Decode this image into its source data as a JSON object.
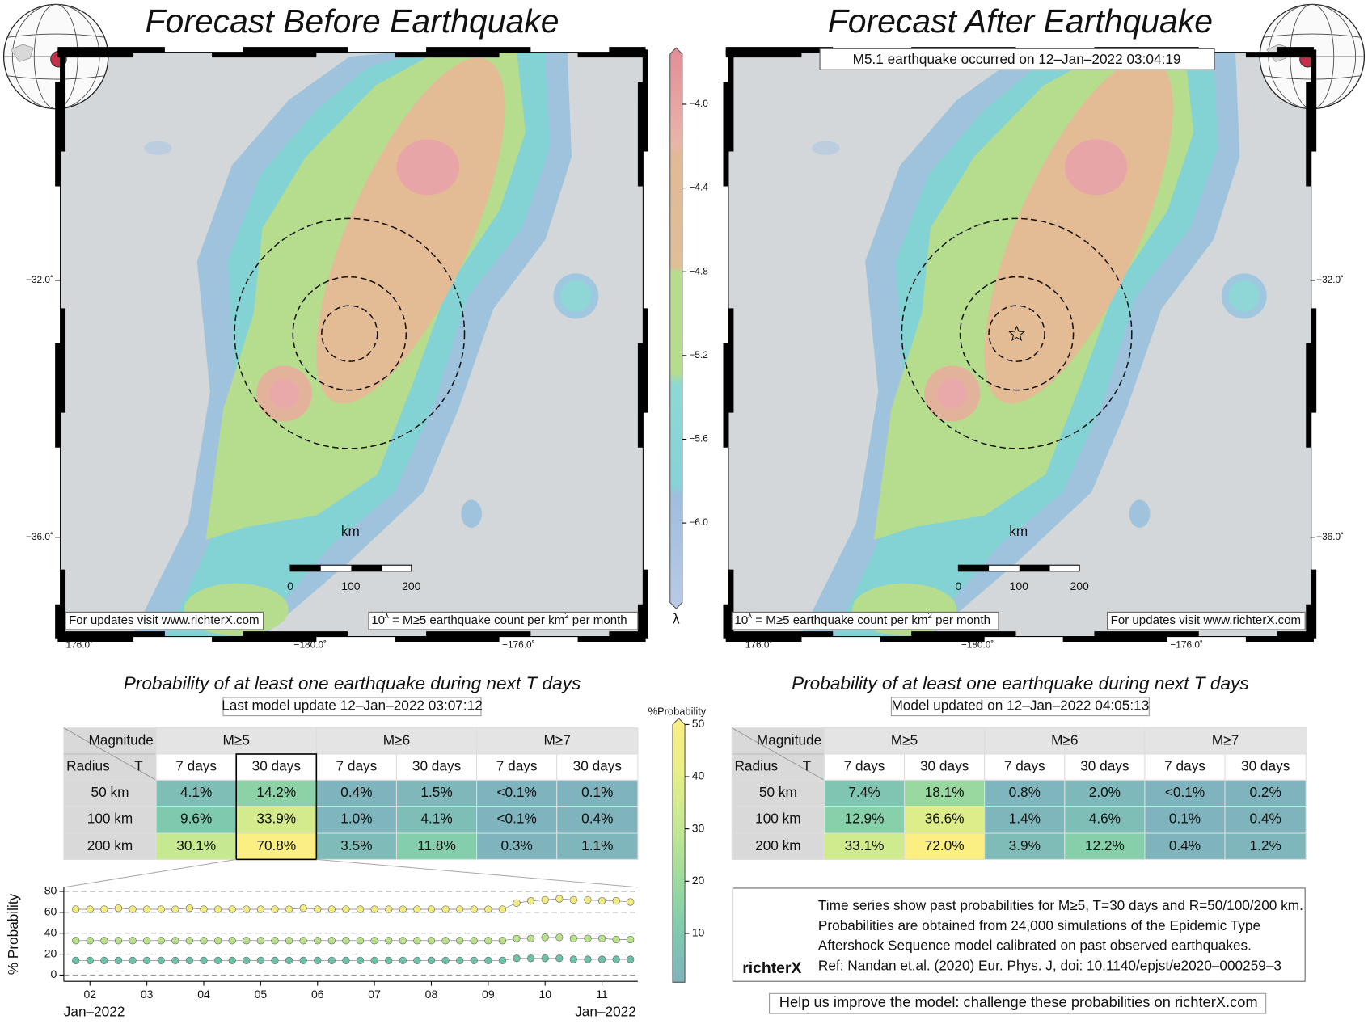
{
  "panels": [
    {
      "title": "Forecast Before Earthquake",
      "lat_labels": [
        "−32.0˚",
        "−36.0˚"
      ],
      "lon_labels": [
        "176.0˚",
        "−180.0˚",
        "−176.0˚"
      ],
      "scale_bar": {
        "unit": "km",
        "ticks": [
          "0",
          "100",
          "200"
        ]
      },
      "footer_link": "For updates visit www.richterX.com",
      "legend_note": [
        "10",
        "λ",
        " = M≥5 earthquake count per km",
        "2",
        " per month"
      ],
      "table": {
        "subtitle": "Probability of at least one earthquake during next T days",
        "update": "Last model update 12–Jan–2022 03:07:12",
        "header": {
          "magnitude": "Magnitude",
          "radius": "Radius",
          "t": "T",
          "magnitudes": [
            "M≥5",
            "M≥6",
            "M≥7"
          ],
          "periods": [
            "7 days",
            "30 days",
            "7 days",
            "30 days",
            "7 days",
            "30 days"
          ]
        },
        "rows": [
          {
            "radius": "50 km",
            "values": [
              "4.1%",
              "14.2%",
              "0.4%",
              "1.5%",
              "<0.1%",
              "0.1%"
            ]
          },
          {
            "radius": "100 km",
            "values": [
              "9.6%",
              "33.9%",
              "1.0%",
              "4.1%",
              "<0.1%",
              "0.4%"
            ]
          },
          {
            "radius": "200 km",
            "values": [
              "30.1%",
              "70.8%",
              "3.5%",
              "11.8%",
              "0.3%",
              "1.1%"
            ]
          }
        ]
      }
    },
    {
      "title": "Forecast After Earthquake",
      "annotation": "M5.1 earthquake occurred on 12–Jan–2022 03:04:19",
      "lat_labels": [
        "−32.0˚",
        "−36.0˚"
      ],
      "lon_labels": [
        "176.0˚",
        "−180.0˚",
        "−176.0˚"
      ],
      "scale_bar": {
        "unit": "km",
        "ticks": [
          "0",
          "100",
          "200"
        ]
      },
      "footer_link": "For updates visit www.richterX.com",
      "legend_note": [
        "10",
        "λ",
        " = M≥5 earthquake count per km",
        "2",
        " per month"
      ],
      "table": {
        "subtitle": "Probability of at least one earthquake during next T days",
        "update": "Model updated on 12–Jan–2022 04:05:13",
        "header": {
          "magnitude": "Magnitude",
          "radius": "Radius",
          "t": "T",
          "magnitudes": [
            "M≥5",
            "M≥6",
            "M≥7"
          ],
          "periods": [
            "7 days",
            "30 days",
            "7 days",
            "30 days",
            "7 days",
            "30 days"
          ]
        },
        "rows": [
          {
            "radius": "50 km",
            "values": [
              "7.4%",
              "18.1%",
              "0.8%",
              "2.0%",
              "<0.1%",
              "0.2%"
            ]
          },
          {
            "radius": "100 km",
            "values": [
              "12.9%",
              "36.6%",
              "1.4%",
              "4.6%",
              "0.1%",
              "0.4%"
            ]
          },
          {
            "radius": "200 km",
            "values": [
              "33.1%",
              "72.0%",
              "3.9%",
              "12.2%",
              "0.4%",
              "1.2%"
            ]
          }
        ]
      }
    }
  ],
  "lambda_colorbar": {
    "label": "λ",
    "lim": [
      -6.38,
      -3.76
    ],
    "ticks": [
      {
        "value": -4.0,
        "label": "−4.0"
      },
      {
        "value": -4.4,
        "label": "−4.4"
      },
      {
        "value": -4.8,
        "label": "−4.8"
      },
      {
        "value": -5.2,
        "label": "−5.2"
      },
      {
        "value": -5.6,
        "label": "−5.6"
      },
      {
        "value": -6.0,
        "label": "−6.0"
      }
    ]
  },
  "probability_colorbar": {
    "label": "%Probability",
    "lim": [
      0,
      50
    ],
    "ticks": [
      10,
      20,
      30,
      40,
      50
    ]
  },
  "chart_data": {
    "type": "scatter",
    "ylabel": "% Probability",
    "x_end_labels": [
      "Jan–2022",
      "Jan–2022"
    ],
    "x": [
      1.75,
      2,
      2.25,
      2.5,
      2.75,
      3,
      3.25,
      3.5,
      3.75,
      4,
      4.25,
      4.5,
      4.75,
      5,
      5.25,
      5.5,
      5.75,
      6,
      6.25,
      6.5,
      6.75,
      7,
      7.25,
      7.5,
      7.75,
      8,
      8.25,
      8.5,
      8.75,
      9,
      9.25,
      9.5,
      9.75,
      10,
      10.25,
      10.5,
      10.75,
      11,
      11.25,
      11.5
    ],
    "xlim": [
      1.54,
      11.63
    ],
    "xticks": [
      {
        "value": 2,
        "label": "02"
      },
      {
        "value": 3,
        "label": "03"
      },
      {
        "value": 4,
        "label": "04"
      },
      {
        "value": 5,
        "label": "05"
      },
      {
        "value": 6,
        "label": "06"
      },
      {
        "value": 7,
        "label": "07"
      },
      {
        "value": 8,
        "label": "08"
      },
      {
        "value": 9,
        "label": "09"
      },
      {
        "value": 10,
        "label": "10"
      },
      {
        "value": 11,
        "label": "11"
      }
    ],
    "ylim": [
      -6,
      84
    ],
    "yticks": [
      0,
      20,
      40,
      60,
      80
    ],
    "grid": true,
    "series": [
      {
        "color": "#f2ec7f",
        "values": [
          63,
          63,
          63,
          64,
          63,
          63,
          63,
          63,
          64,
          63,
          63,
          63,
          63,
          63,
          63,
          63,
          64,
          63,
          63,
          63,
          63,
          63,
          63,
          63,
          63,
          63,
          63,
          63,
          63,
          63,
          63,
          69,
          71,
          72,
          73,
          72,
          72,
          71,
          71,
          70
        ]
      },
      {
        "color": "#b9e08a",
        "values": [
          33,
          33,
          33,
          33,
          33,
          33,
          33,
          33,
          33,
          33,
          33,
          33,
          33,
          33,
          33,
          33,
          33,
          33,
          33,
          33,
          33,
          33,
          33,
          33,
          33,
          33,
          33,
          33,
          33,
          33,
          33,
          35,
          35,
          36,
          36,
          35,
          35,
          35,
          34,
          34
        ]
      },
      {
        "color": "#6cc2a8",
        "values": [
          14,
          14,
          14,
          14,
          14,
          14,
          14,
          14,
          14,
          14,
          14,
          14,
          14,
          14,
          14,
          14,
          14,
          14,
          14,
          14,
          14,
          14,
          14,
          14,
          14,
          14,
          14,
          14,
          14,
          14,
          14,
          16,
          16,
          16,
          16,
          15,
          15,
          15,
          15,
          15
        ]
      }
    ]
  },
  "info_box": {
    "logo": "richterX",
    "lines": [
      "Time series show past probabilities for M≥5, T=30 days and R=50/100/200 km.",
      "Probabilities are obtained from 24,000 simulations of the Epidemic Type",
      "Aftershock Sequence model calibrated on past observed earthquakes.",
      "Ref: Nandan et.al. (2020) Eur. Phys. J, doi: 10.1140/epjst/e2020–000259–3"
    ]
  },
  "footer": "Help us improve the model: challenge these probabilities on richterX.com"
}
